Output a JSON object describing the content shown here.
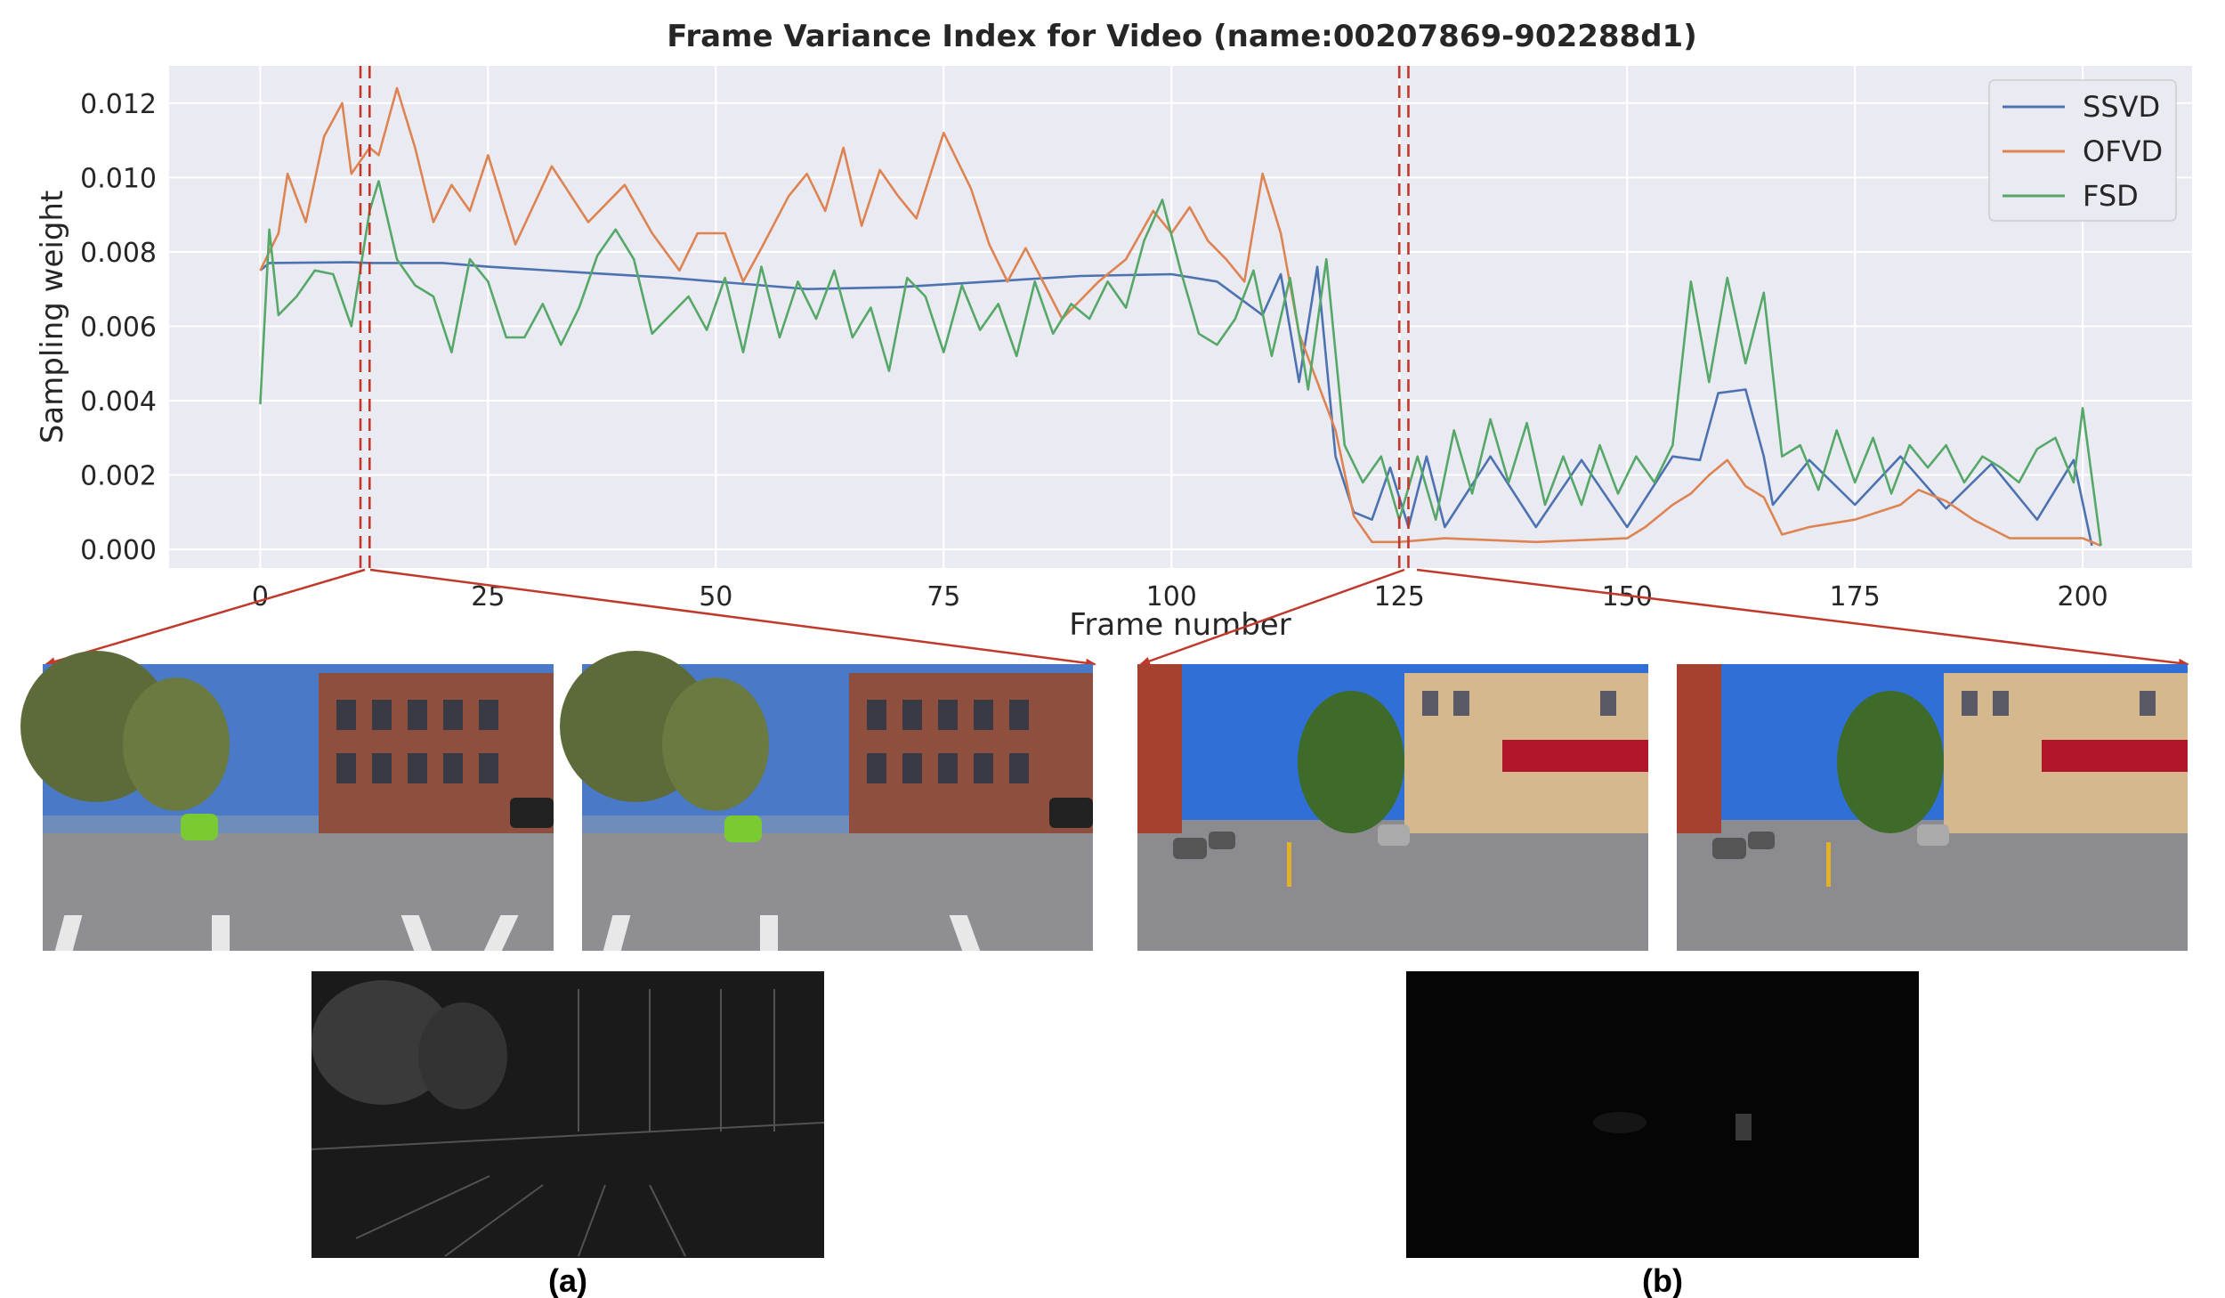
{
  "chart_data": {
    "type": "line",
    "title": "Frame Variance Index for Video (name:00207869-902288d1)",
    "xlabel": "Frame number",
    "ylabel": "Sampling weight",
    "xlim": [
      -10,
      212
    ],
    "ylim": [
      -0.0005,
      0.013
    ],
    "xticks": [
      "0",
      "25",
      "50",
      "75",
      "100",
      "125",
      "150",
      "175",
      "200"
    ],
    "xtick_values": [
      0,
      25,
      50,
      75,
      100,
      125,
      150,
      175,
      200
    ],
    "yticks": [
      "0.000",
      "0.002",
      "0.004",
      "0.006",
      "0.008",
      "0.010",
      "0.012"
    ],
    "ytick_values": [
      0,
      0.002,
      0.004,
      0.006,
      0.008,
      0.01,
      0.012
    ],
    "grid": true,
    "legend_position": "top-right",
    "series": [
      {
        "name": "SSVD",
        "color": "#4c72b0",
        "points": [
          [
            0,
            0.0075
          ],
          [
            1,
            0.0077
          ],
          [
            10,
            0.00772
          ],
          [
            12,
            0.0077
          ],
          [
            20,
            0.0077
          ],
          [
            25,
            0.0076
          ],
          [
            35,
            0.00745
          ],
          [
            45,
            0.0073
          ],
          [
            55,
            0.0071
          ],
          [
            60,
            0.007
          ],
          [
            70,
            0.00705
          ],
          [
            80,
            0.0072
          ],
          [
            90,
            0.00735
          ],
          [
            100,
            0.0074
          ],
          [
            105,
            0.0072
          ],
          [
            110,
            0.0063
          ],
          [
            112,
            0.0074
          ],
          [
            114,
            0.0045
          ],
          [
            116,
            0.0076
          ],
          [
            118,
            0.0025
          ],
          [
            120,
            0.001
          ],
          [
            122,
            0.0008
          ],
          [
            124,
            0.0022
          ],
          [
            126,
            0.0006
          ],
          [
            128,
            0.0025
          ],
          [
            130,
            0.0006
          ],
          [
            135,
            0.0025
          ],
          [
            140,
            0.0006
          ],
          [
            145,
            0.0024
          ],
          [
            150,
            0.0006
          ],
          [
            155,
            0.0025
          ],
          [
            158,
            0.0024
          ],
          [
            160,
            0.0042
          ],
          [
            163,
            0.0043
          ],
          [
            165,
            0.0025
          ],
          [
            166,
            0.0012
          ],
          [
            170,
            0.0024
          ],
          [
            175,
            0.0012
          ],
          [
            180,
            0.0025
          ],
          [
            185,
            0.0011
          ],
          [
            190,
            0.0023
          ],
          [
            195,
            0.0008
          ],
          [
            199,
            0.0024
          ],
          [
            201,
            0.0001
          ]
        ]
      },
      {
        "name": "OFVD",
        "color": "#dd8452",
        "points": [
          [
            0,
            0.0075
          ],
          [
            2,
            0.0085
          ],
          [
            3,
            0.0101
          ],
          [
            5,
            0.0088
          ],
          [
            7,
            0.0111
          ],
          [
            9,
            0.012
          ],
          [
            10,
            0.0101
          ],
          [
            12,
            0.0108
          ],
          [
            13,
            0.0106
          ],
          [
            15,
            0.0124
          ],
          [
            17,
            0.0108
          ],
          [
            19,
            0.0088
          ],
          [
            21,
            0.0098
          ],
          [
            23,
            0.0091
          ],
          [
            25,
            0.0106
          ],
          [
            28,
            0.0082
          ],
          [
            32,
            0.0103
          ],
          [
            36,
            0.0088
          ],
          [
            40,
            0.0098
          ],
          [
            43,
            0.0085
          ],
          [
            46,
            0.0075
          ],
          [
            48,
            0.0085
          ],
          [
            51,
            0.0085
          ],
          [
            53,
            0.0072
          ],
          [
            55,
            0.0081
          ],
          [
            58,
            0.0095
          ],
          [
            60,
            0.0101
          ],
          [
            62,
            0.0091
          ],
          [
            64,
            0.0108
          ],
          [
            66,
            0.0087
          ],
          [
            68,
            0.0102
          ],
          [
            70,
            0.0095
          ],
          [
            72,
            0.0089
          ],
          [
            75,
            0.0112
          ],
          [
            78,
            0.0097
          ],
          [
            80,
            0.0082
          ],
          [
            82,
            0.0072
          ],
          [
            84,
            0.0081
          ],
          [
            88,
            0.0062
          ],
          [
            92,
            0.0072
          ],
          [
            95,
            0.0078
          ],
          [
            98,
            0.0091
          ],
          [
            100,
            0.0085
          ],
          [
            102,
            0.0092
          ],
          [
            104,
            0.0083
          ],
          [
            106,
            0.0078
          ],
          [
            108,
            0.0072
          ],
          [
            110,
            0.0101
          ],
          [
            112,
            0.0085
          ],
          [
            114,
            0.0058
          ],
          [
            116,
            0.0045
          ],
          [
            118,
            0.0032
          ],
          [
            120,
            0.0009
          ],
          [
            122,
            0.0002
          ],
          [
            125,
            0.0002
          ],
          [
            130,
            0.0003
          ],
          [
            140,
            0.0002
          ],
          [
            150,
            0.0003
          ],
          [
            152,
            0.0006
          ],
          [
            155,
            0.0012
          ],
          [
            157,
            0.0015
          ],
          [
            159,
            0.002
          ],
          [
            161,
            0.0024
          ],
          [
            163,
            0.0017
          ],
          [
            165,
            0.0014
          ],
          [
            167,
            0.0004
          ],
          [
            170,
            0.0006
          ],
          [
            175,
            0.0008
          ],
          [
            180,
            0.0012
          ],
          [
            182,
            0.0016
          ],
          [
            185,
            0.0013
          ],
          [
            188,
            0.0008
          ],
          [
            192,
            0.0003
          ],
          [
            196,
            0.0003
          ],
          [
            200,
            0.0003
          ],
          [
            202,
            0.0001
          ]
        ]
      },
      {
        "name": "FSD",
        "color": "#55a868",
        "points": [
          [
            0,
            0.0039
          ],
          [
            1,
            0.0086
          ],
          [
            2,
            0.0063
          ],
          [
            4,
            0.0068
          ],
          [
            6,
            0.0075
          ],
          [
            8,
            0.0074
          ],
          [
            10,
            0.006
          ],
          [
            12,
            0.0091
          ],
          [
            13,
            0.0099
          ],
          [
            15,
            0.0078
          ],
          [
            17,
            0.0071
          ],
          [
            19,
            0.0068
          ],
          [
            21,
            0.0053
          ],
          [
            23,
            0.0078
          ],
          [
            25,
            0.0072
          ],
          [
            27,
            0.0057
          ],
          [
            29,
            0.0057
          ],
          [
            31,
            0.0066
          ],
          [
            33,
            0.0055
          ],
          [
            35,
            0.0065
          ],
          [
            37,
            0.0079
          ],
          [
            39,
            0.0086
          ],
          [
            41,
            0.0078
          ],
          [
            43,
            0.0058
          ],
          [
            45,
            0.0063
          ],
          [
            47,
            0.0068
          ],
          [
            49,
            0.0059
          ],
          [
            51,
            0.0073
          ],
          [
            53,
            0.0053
          ],
          [
            55,
            0.0076
          ],
          [
            57,
            0.0057
          ],
          [
            59,
            0.0072
          ],
          [
            61,
            0.0062
          ],
          [
            63,
            0.0075
          ],
          [
            65,
            0.0057
          ],
          [
            67,
            0.0065
          ],
          [
            69,
            0.0048
          ],
          [
            71,
            0.0073
          ],
          [
            73,
            0.0068
          ],
          [
            75,
            0.0053
          ],
          [
            77,
            0.0071
          ],
          [
            79,
            0.0059
          ],
          [
            81,
            0.0066
          ],
          [
            83,
            0.0052
          ],
          [
            85,
            0.0072
          ],
          [
            87,
            0.0058
          ],
          [
            89,
            0.0066
          ],
          [
            91,
            0.0062
          ],
          [
            93,
            0.0072
          ],
          [
            95,
            0.0065
          ],
          [
            97,
            0.0083
          ],
          [
            99,
            0.0094
          ],
          [
            101,
            0.0075
          ],
          [
            103,
            0.0058
          ],
          [
            105,
            0.0055
          ],
          [
            107,
            0.0062
          ],
          [
            109,
            0.0075
          ],
          [
            111,
            0.0052
          ],
          [
            113,
            0.0073
          ],
          [
            115,
            0.0043
          ],
          [
            117,
            0.0078
          ],
          [
            119,
            0.0028
          ],
          [
            121,
            0.0018
          ],
          [
            123,
            0.0025
          ],
          [
            125,
            0.0008
          ],
          [
            127,
            0.0025
          ],
          [
            129,
            0.0008
          ],
          [
            131,
            0.0032
          ],
          [
            133,
            0.0015
          ],
          [
            135,
            0.0035
          ],
          [
            137,
            0.0018
          ],
          [
            139,
            0.0034
          ],
          [
            141,
            0.0012
          ],
          [
            143,
            0.0025
          ],
          [
            145,
            0.0012
          ],
          [
            147,
            0.0028
          ],
          [
            149,
            0.0015
          ],
          [
            151,
            0.0025
          ],
          [
            153,
            0.0018
          ],
          [
            155,
            0.0028
          ],
          [
            157,
            0.0072
          ],
          [
            159,
            0.0045
          ],
          [
            161,
            0.0073
          ],
          [
            163,
            0.005
          ],
          [
            165,
            0.0069
          ],
          [
            167,
            0.0025
          ],
          [
            169,
            0.0028
          ],
          [
            171,
            0.0016
          ],
          [
            173,
            0.0032
          ],
          [
            175,
            0.0018
          ],
          [
            177,
            0.003
          ],
          [
            179,
            0.0015
          ],
          [
            181,
            0.0028
          ],
          [
            183,
            0.0022
          ],
          [
            185,
            0.0028
          ],
          [
            187,
            0.0018
          ],
          [
            189,
            0.0025
          ],
          [
            191,
            0.0022
          ],
          [
            193,
            0.0018
          ],
          [
            195,
            0.0027
          ],
          [
            197,
            0.003
          ],
          [
            199,
            0.0018
          ],
          [
            200,
            0.0038
          ],
          [
            202,
            0.0001
          ]
        ]
      }
    ],
    "highlight_frames": [
      11,
      12,
      125,
      126
    ]
  },
  "captions": {
    "a": "(a)",
    "b": "(b)"
  },
  "colors": {
    "plot_bg": "#eaeaf2",
    "grid": "#ffffff",
    "callout": "#c0392b"
  }
}
